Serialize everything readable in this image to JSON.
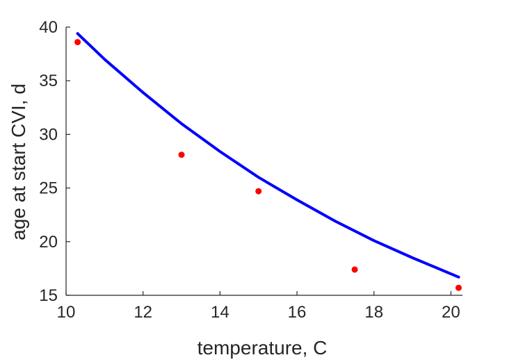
{
  "chart_data": {
    "type": "scatter",
    "title": "",
    "xlabel": "temperature, C",
    "ylabel": "age at start CVI, d",
    "xlim": [
      10,
      20.3
    ],
    "ylim": [
      15,
      40
    ],
    "xticks": [
      10,
      12,
      14,
      16,
      18,
      20
    ],
    "yticks": [
      15,
      20,
      25,
      30,
      35,
      40
    ],
    "grid": false,
    "legend": "none",
    "series": [
      {
        "type": "scatter",
        "color": "#ff0000",
        "x": [
          10.3,
          13.0,
          15.0,
          17.5,
          20.2
        ],
        "y": [
          38.6,
          28.1,
          24.7,
          17.4,
          15.7
        ]
      },
      {
        "type": "line",
        "color": "#0000ff",
        "x": [
          10.3,
          11.0,
          12.0,
          13.0,
          14.0,
          15.0,
          16.0,
          17.0,
          18.0,
          19.0,
          20.2
        ],
        "y": [
          39.4,
          37.0,
          33.9,
          31.0,
          28.4,
          26.0,
          23.9,
          21.9,
          20.1,
          18.5,
          16.7
        ]
      }
    ]
  }
}
